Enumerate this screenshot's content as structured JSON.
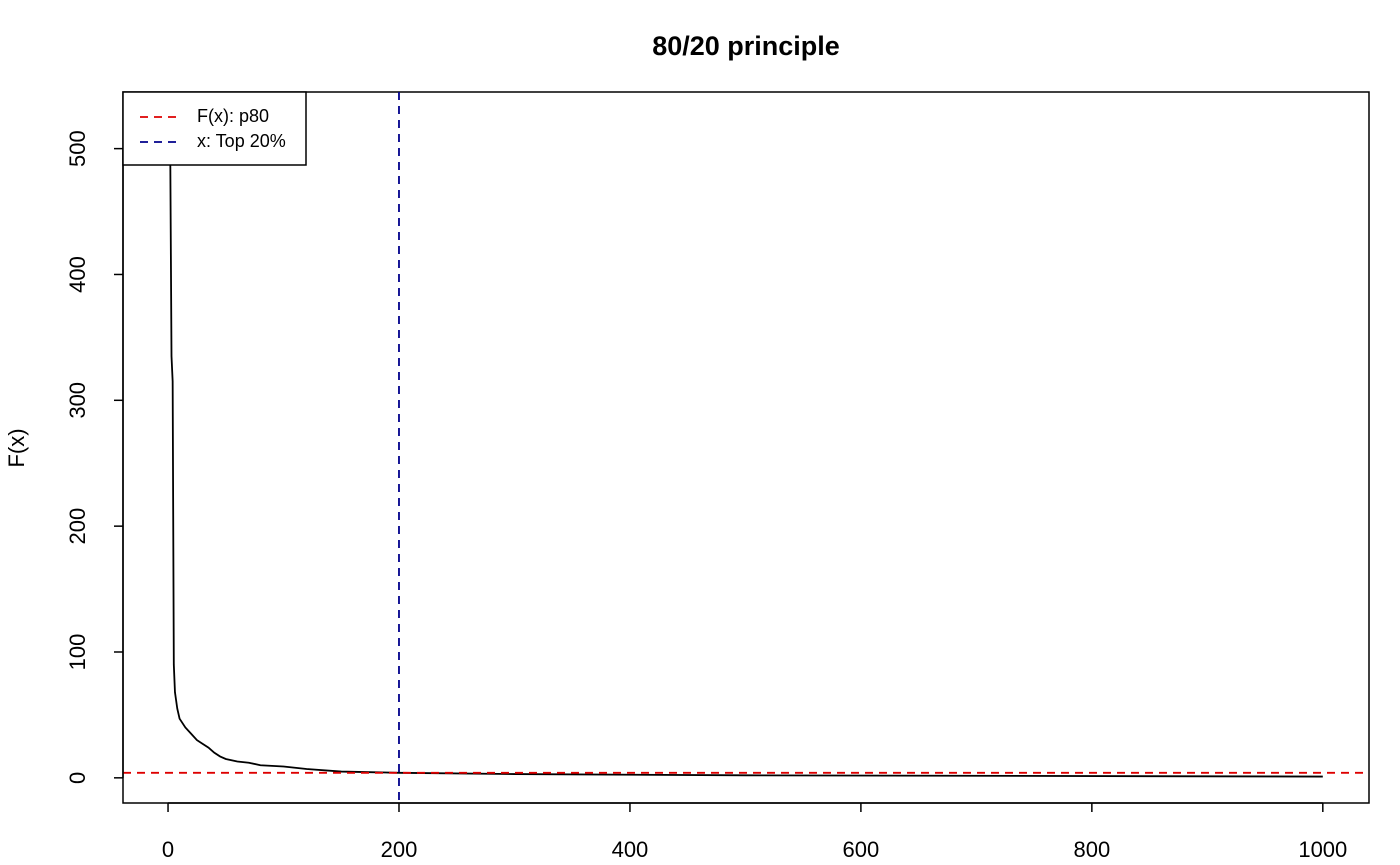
{
  "chart_data": {
    "type": "line",
    "title": "80/20 principle",
    "y_label": "F(x)",
    "x": [
      1,
      2,
      3,
      4,
      5,
      6,
      8,
      10,
      15,
      20,
      25,
      30,
      35,
      40,
      45,
      50,
      60,
      70,
      80,
      100,
      120,
      150,
      200,
      300,
      500,
      1000
    ],
    "series": [
      {
        "name": "F(x)",
        "color": "#000000",
        "values": [
          600,
          485,
          335,
          315,
          90,
          68,
          55,
          47,
          40,
          35,
          30,
          27,
          24,
          20,
          17,
          15,
          13,
          12,
          10,
          9,
          7,
          5,
          4,
          3,
          2,
          1
        ]
      }
    ],
    "reference_lines": [
      {
        "name": "F(x): p80",
        "color": "#dd0000",
        "y": 4
      },
      {
        "name": "x: Top 20%",
        "color": "#00008b",
        "x": 200
      }
    ],
    "xlim": [
      -39,
      1040
    ],
    "ylim": [
      -20,
      545
    ],
    "xticks": [
      0,
      200,
      400,
      600,
      800,
      1000
    ],
    "yticks": [
      0,
      100,
      200,
      300,
      400,
      500
    ],
    "legend": "top-left"
  }
}
